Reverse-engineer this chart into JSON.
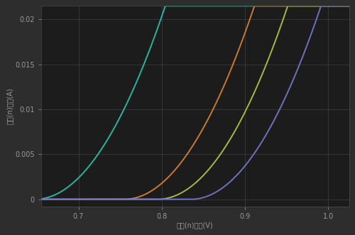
{
  "bg_color": "#2d2d2d",
  "plot_bg_color": "#1c1c1c",
  "grid_color": "#4a4a4a",
  "text_color": "#999999",
  "xlabel": "栏源(n)电压(V)",
  "ylabel": "漏极(n)电流(A)",
  "xlim": [
    0.655,
    1.025
  ],
  "ylim": [
    -0.0008,
    0.0215
  ],
  "xticks": [
    0.7,
    0.8,
    0.9,
    1.0
  ],
  "yticks": [
    0.0,
    0.005,
    0.01,
    0.015,
    0.02
  ],
  "curves": [
    {
      "vth": 0.648,
      "k": 0.88,
      "color": "#2ab5a0"
    },
    {
      "vth": 0.755,
      "k": 0.88,
      "color": "#c97a30"
    },
    {
      "vth": 0.795,
      "k": 0.88,
      "color": "#a8b840"
    },
    {
      "vth": 0.835,
      "k": 0.88,
      "color": "#7070c0"
    }
  ],
  "linewidth": 1.4,
  "axis_fontsize": 7,
  "tick_fontsize": 7
}
